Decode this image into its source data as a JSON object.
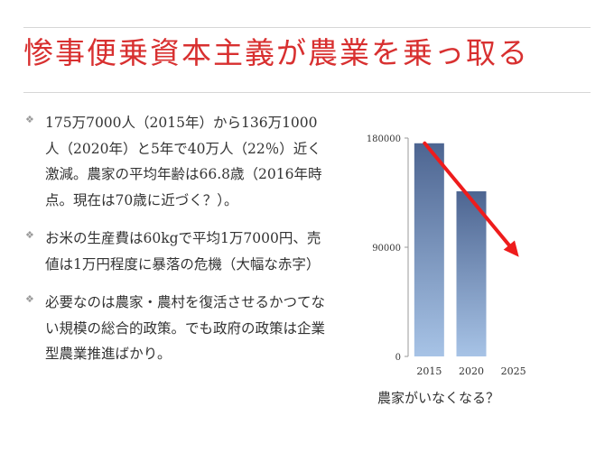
{
  "slide": {
    "title": "惨事便乗資本主義が農業を乗っ取る",
    "bullets": [
      "175万7000人（2015年）から136万1000人（2020年）と5年で40万人（22％）近く激減。農家の平均年齢は66.8歳（2016年時点。現在は70歳に近づく？）。",
      "お米の生産費は60kgで平均1万7000円、売値は1万円程度に暴落の危機（大幅な赤字）",
      "必要なのは農家・農村を復活させるかつてない規模の総合的政策。でも政府の政策は企業型農業推進ばかり。"
    ],
    "bullet_icon": "diamond-bullet-icon",
    "caption": "農家がいなくなる？"
  },
  "chart_data": {
    "type": "bar",
    "title": "",
    "xlabel": "",
    "ylabel": "",
    "categories": [
      "2015",
      "2020",
      "2025"
    ],
    "values": [
      175700,
      136100,
      null
    ],
    "ylim": [
      0,
      180000
    ],
    "yticks": [
      0,
      90000,
      180000
    ],
    "ytick_labels": [
      "0",
      "90000",
      "180000"
    ],
    "grid": false,
    "trend_arrow": {
      "from": [
        "2015",
        175700
      ],
      "to": [
        "2025",
        82000
      ],
      "color": "#ee1c1c"
    },
    "bar_color_top": "#4d6591",
    "bar_color_bottom": "#a7c3e6"
  },
  "colors": {
    "title": "#d83030",
    "text": "#333333",
    "axis": "#9a9a9a"
  }
}
